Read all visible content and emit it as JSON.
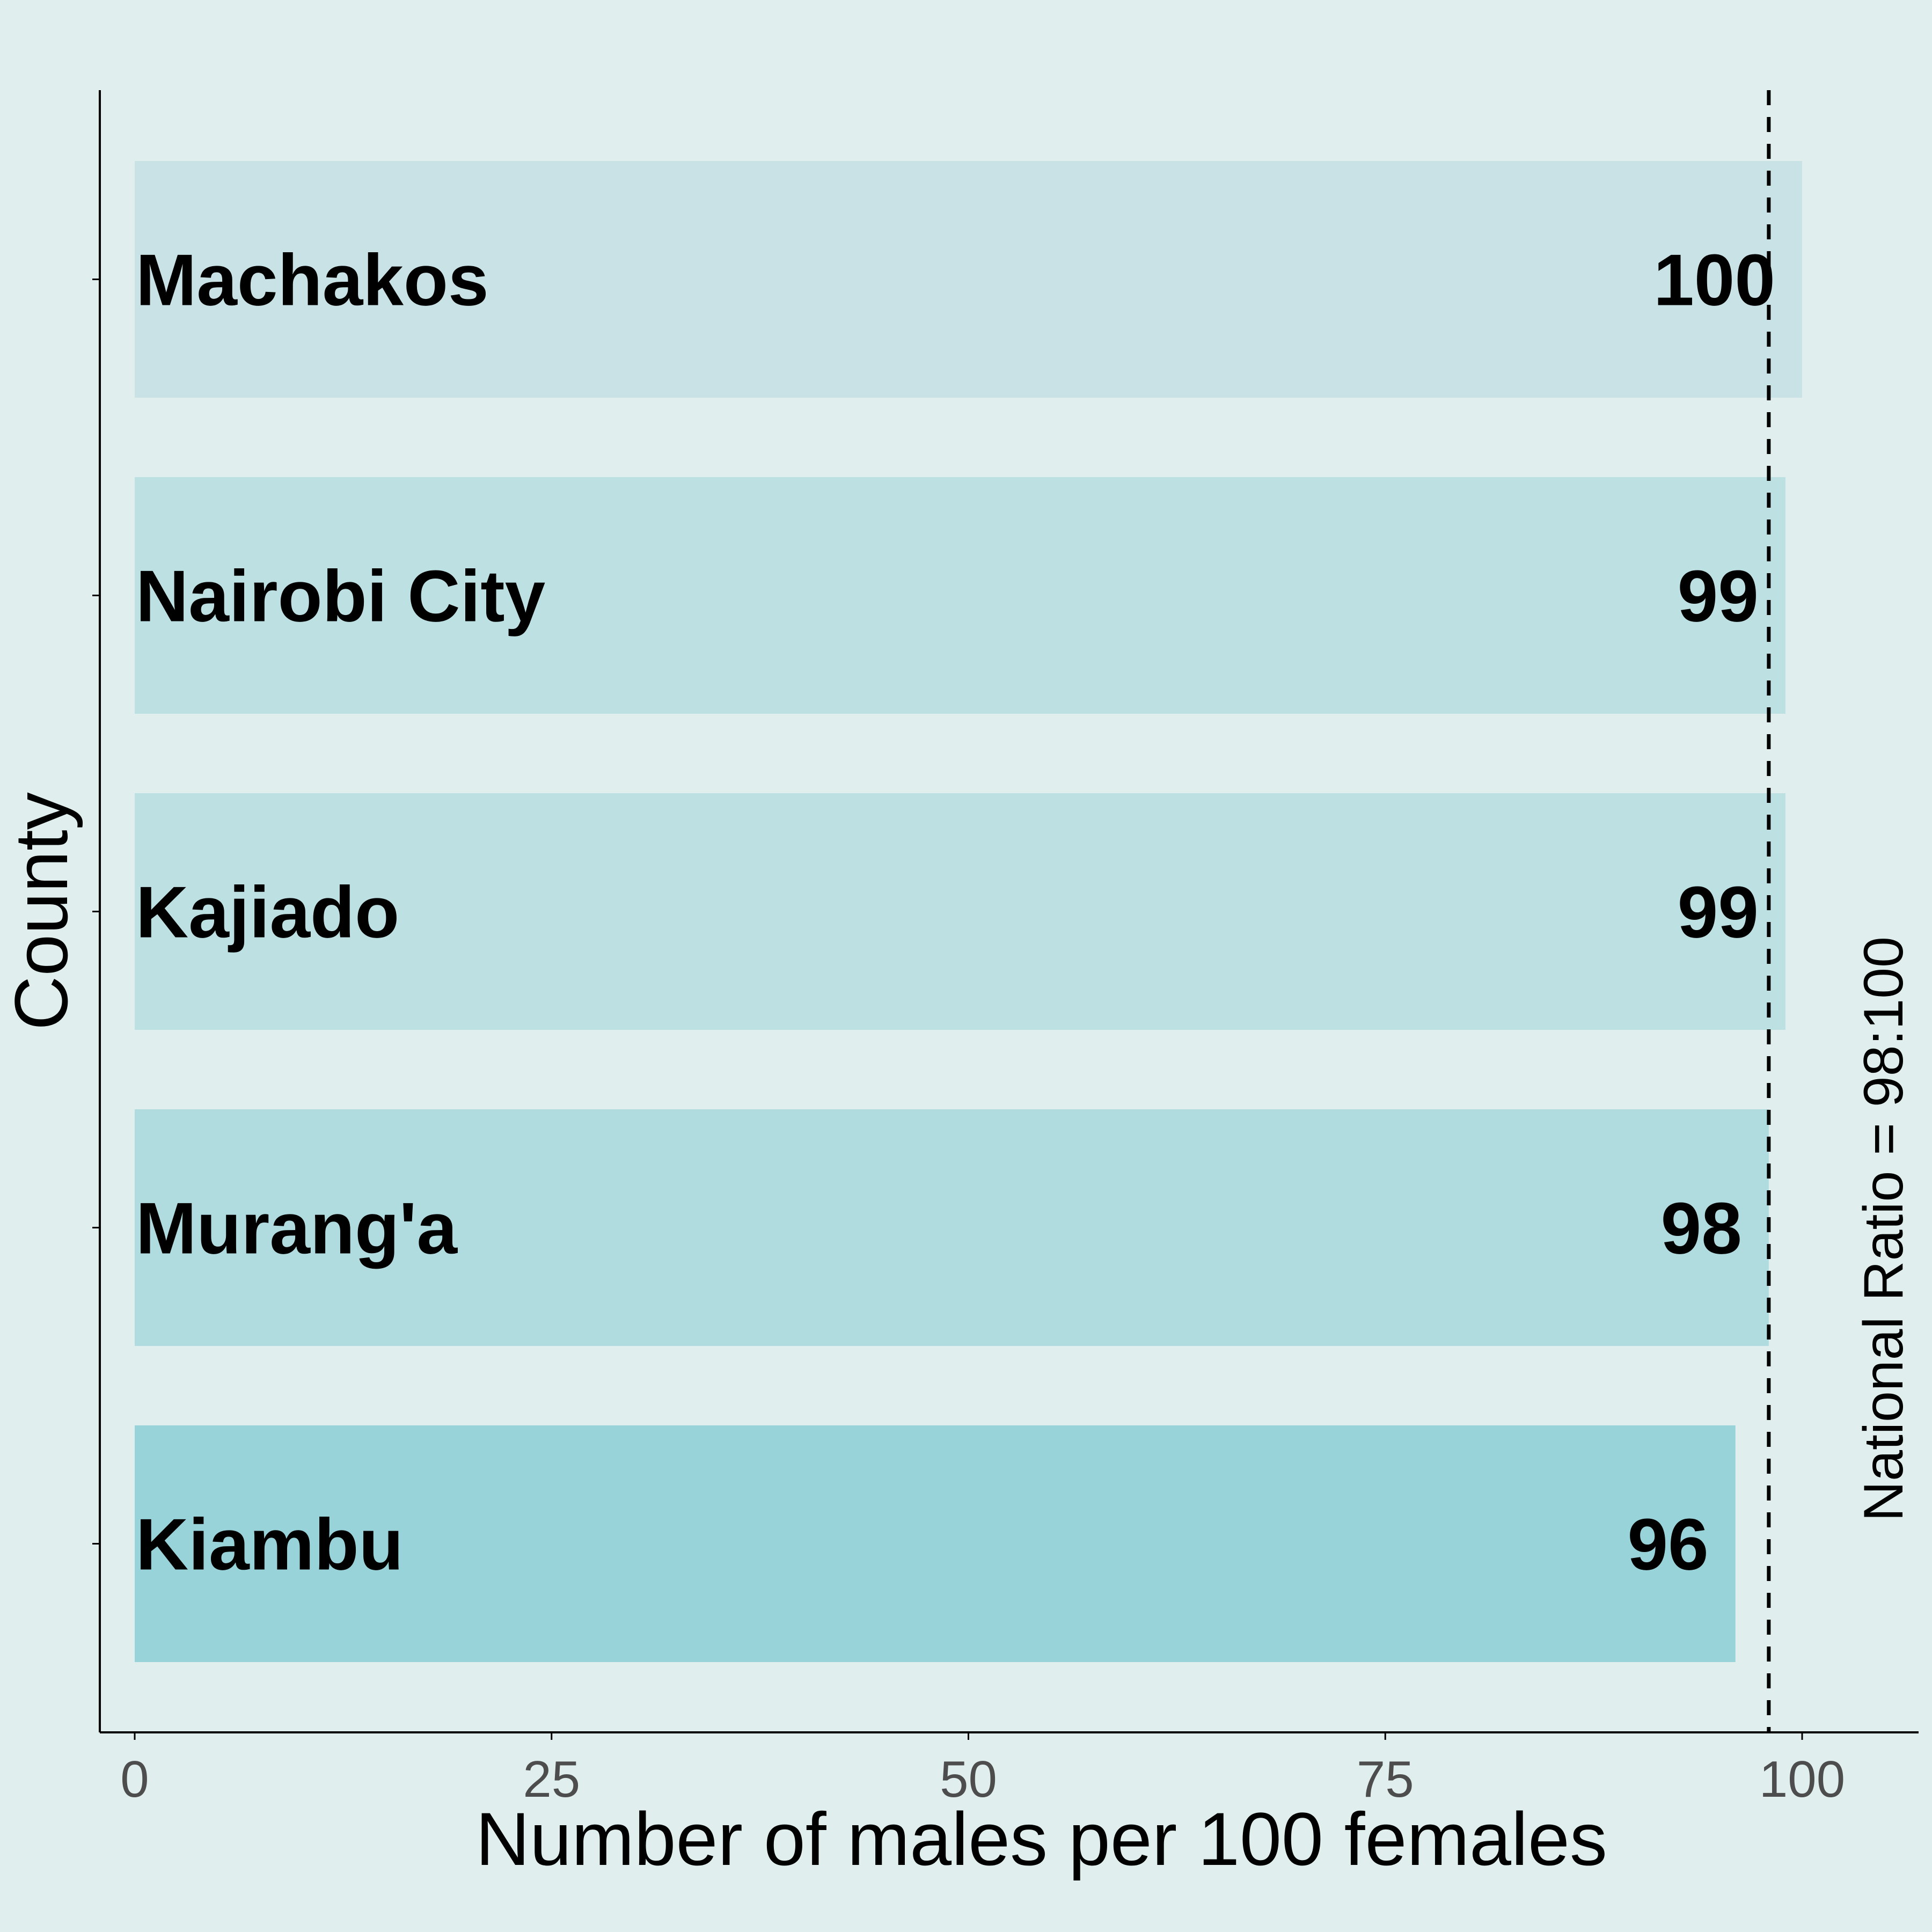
{
  "chart_data": {
    "type": "bar",
    "orientation": "horizontal",
    "categories": [
      "Machakos",
      "Nairobi City",
      "Kajiado",
      "Murang'a",
      "Kiambu"
    ],
    "values": [
      100,
      99,
      99,
      98,
      96
    ],
    "value_labels": [
      "100",
      "99",
      "99",
      "98",
      "96"
    ],
    "bar_colors": [
      "#c8e2e6",
      "#bde0e3",
      "#bde0e3",
      "#b0dbdf",
      "#98d3da"
    ],
    "title": "",
    "xlabel": "Number of males per 100 females",
    "ylabel": "County",
    "xlim": [
      0,
      105
    ],
    "x_ticks": [
      0,
      25,
      50,
      75,
      100
    ],
    "x_tick_labels": [
      "0",
      "25",
      "50",
      "75",
      "100"
    ],
    "grid": false,
    "legend": "none",
    "reference_line": {
      "value": 98,
      "style": "dashed",
      "label": "National Ratio = 98:100"
    },
    "background_color": "#e0efee"
  }
}
